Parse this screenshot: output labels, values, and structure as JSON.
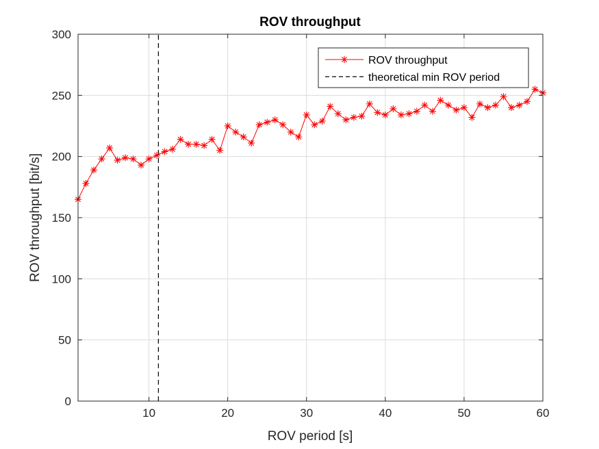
{
  "chart_data": {
    "type": "line",
    "title": "ROV throughput",
    "xlabel": "ROV period [s]",
    "ylabel": "ROV throughput [bit/s]",
    "xlim": [
      1,
      60
    ],
    "ylim": [
      0,
      300
    ],
    "xticks": [
      10,
      20,
      30,
      40,
      50,
      60
    ],
    "yticks": [
      0,
      50,
      100,
      150,
      200,
      250,
      300
    ],
    "grid": true,
    "legend_position": "top-right",
    "series": [
      {
        "name": "ROV throughput",
        "color": "#ff0000",
        "marker": "asterisk",
        "line_style": "solid",
        "x": [
          1,
          2,
          3,
          4,
          5,
          6,
          7,
          8,
          9,
          10,
          11,
          12,
          13,
          14,
          15,
          16,
          17,
          18,
          19,
          20,
          21,
          22,
          23,
          24,
          25,
          26,
          27,
          28,
          29,
          30,
          31,
          32,
          33,
          34,
          35,
          36,
          37,
          38,
          39,
          40,
          41,
          42,
          43,
          44,
          45,
          46,
          47,
          48,
          49,
          50,
          51,
          52,
          53,
          54,
          55,
          56,
          57,
          58,
          59,
          60
        ],
        "y": [
          165,
          178,
          189,
          198,
          207,
          197,
          199,
          198,
          193,
          198,
          201,
          204,
          206,
          214,
          210,
          210,
          209,
          214,
          205,
          225,
          220,
          216,
          211,
          226,
          228,
          230,
          226,
          220,
          216,
          234,
          226,
          229,
          241,
          235,
          230,
          232,
          233,
          243,
          236,
          234,
          239,
          234,
          235,
          237,
          242,
          237,
          246,
          242,
          238,
          240,
          232,
          243,
          240,
          242,
          249,
          240,
          242,
          245,
          255,
          252
        ]
      },
      {
        "name": "theoretical min ROV period",
        "color": "#000000",
        "line_style": "dashed",
        "x": [
          11.2,
          11.2
        ],
        "y": [
          0,
          300
        ]
      }
    ]
  }
}
